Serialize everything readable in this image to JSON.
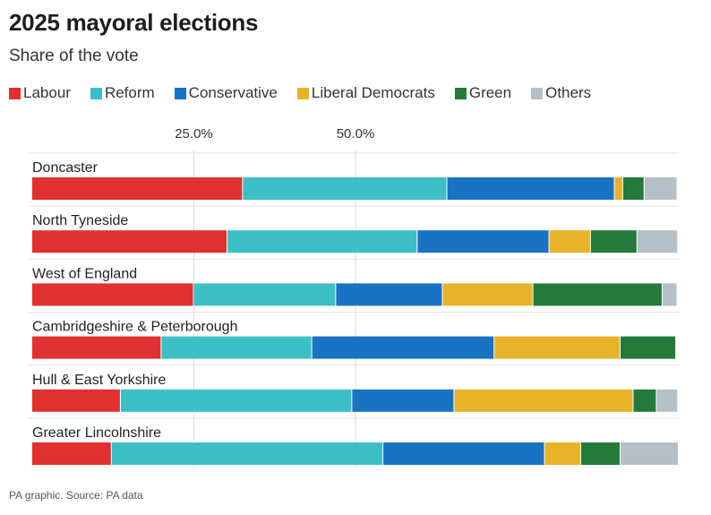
{
  "chart_data": {
    "type": "bar",
    "orientation": "horizontal",
    "stacked": true,
    "title": "2025 mayoral elections",
    "subtitle": "Share of the vote",
    "source": "PA graphic. Source: PA data",
    "xlim": [
      0,
      100
    ],
    "x_ticks": [
      25,
      50
    ],
    "x_tick_labels": [
      "25.0%",
      "50.0%"
    ],
    "grid": true,
    "legend_position": "top-left",
    "categories": [
      "Doncaster",
      "North Tyneside",
      "West of England",
      "Cambridgeshire & Peterborough",
      "Hull & East Yorkshire",
      "Greater Lincolnshire"
    ],
    "series": [
      {
        "name": "Labour",
        "color": "#e03030",
        "values": [
          32.6,
          30.2,
          25.0,
          20.0,
          13.7,
          12.3
        ]
      },
      {
        "name": "Reform",
        "color": "#3dbfc6",
        "values": [
          31.6,
          29.4,
          22.0,
          23.3,
          35.8,
          42.0
        ]
      },
      {
        "name": "Conservative",
        "color": "#1a73c2",
        "values": [
          25.9,
          20.4,
          16.5,
          28.2,
          15.8,
          25.0
        ]
      },
      {
        "name": "Liberal Democrats",
        "color": "#e8b22a",
        "values": [
          1.3,
          6.4,
          14.0,
          19.5,
          27.7,
          5.6
        ]
      },
      {
        "name": "Green",
        "color": "#237a3b",
        "values": [
          3.3,
          7.2,
          20.0,
          8.6,
          3.6,
          6.1
        ]
      },
      {
        "name": "Others",
        "color": "#b4bfc6",
        "values": [
          5.1,
          6.3,
          2.3,
          0.0,
          3.3,
          9.0
        ]
      }
    ]
  }
}
